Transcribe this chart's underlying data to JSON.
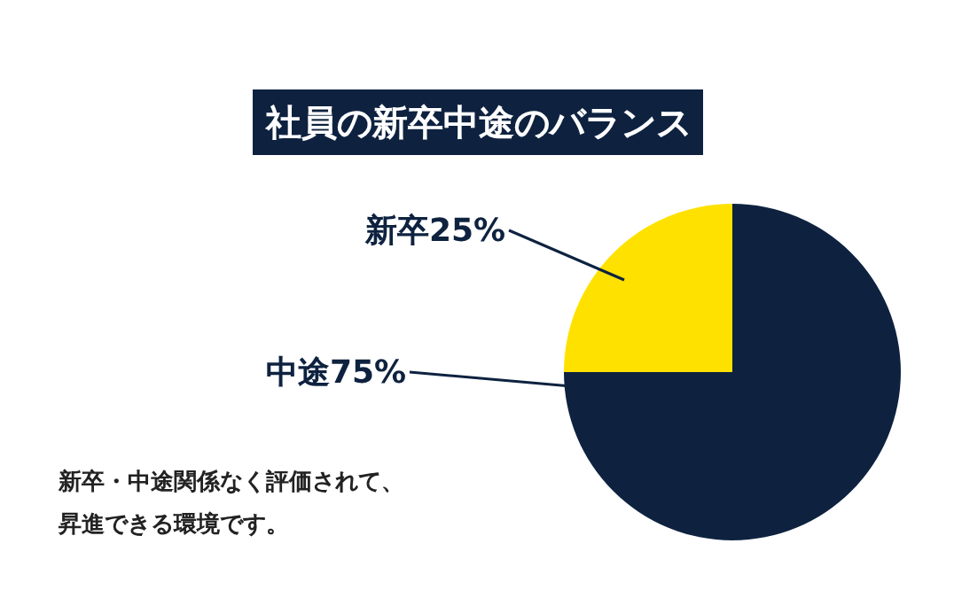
{
  "chart_data": {
    "type": "pie",
    "title": "社員の新卒中途のバランス",
    "categories": [
      "新卒",
      "中途"
    ],
    "values": [
      25,
      75
    ],
    "colors": [
      "#ffe100",
      "#0e2240"
    ],
    "value_labels": [
      "25%",
      "75%"
    ],
    "annotations": [
      "新卒・中途関係なく評価されて、",
      "昇進できる環境です。"
    ]
  }
}
